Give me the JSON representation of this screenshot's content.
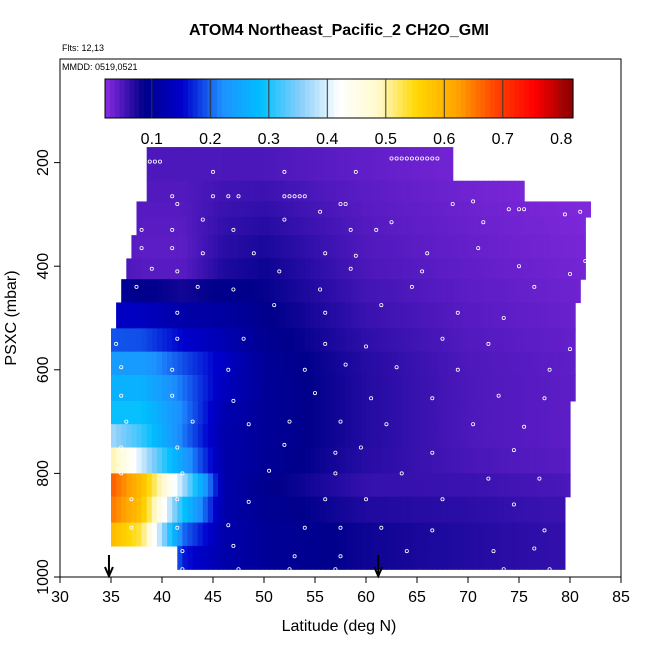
{
  "chart_data": {
    "type": "heatmap",
    "title": "ATOM4 Northeast_Pacific_2 CH2O_GMI",
    "annotations": [
      "Flts: 12,13",
      "MMDD: 0519,0521"
    ],
    "xlabel": "Latitude (deg N)",
    "ylabel": "PSXC (mbar)",
    "xlim": [
      30,
      85
    ],
    "ylim": [
      1000,
      0
    ],
    "x_ticks": [
      "30",
      "35",
      "40",
      "45",
      "50",
      "55",
      "60",
      "65",
      "70",
      "75",
      "80",
      "85"
    ],
    "y_ticks": [
      "200",
      "400",
      "600",
      "800",
      "1000"
    ],
    "colorbar": {
      "range": [
        0.02,
        0.82
      ],
      "ticks": [
        "0.1",
        "0.2",
        "0.3",
        "0.4",
        "0.5",
        "0.6",
        "0.7",
        "0.8"
      ],
      "colors": [
        "#8a2be2",
        "#00008b",
        "#0000cd",
        "#1e90ff",
        "#00bfff",
        "#87cefa",
        "#ffffff",
        "#fffacd",
        "#ffd700",
        "#ffa500",
        "#ff4500",
        "#ff0000",
        "#8b0000"
      ]
    },
    "flight_markers_latitude": [
      34.8,
      61.2
    ],
    "pressure_layers": [
      {
        "p_top": 170,
        "p_bot": 235,
        "lat_start": 38.5,
        "lat_end": 68.5
      },
      {
        "p_top": 235,
        "p_bot": 275,
        "lat_start": 38.5,
        "lat_end": 75.5
      },
      {
        "p_top": 275,
        "p_bot": 305,
        "lat_start": 37.5,
        "lat_end": 82.0
      },
      {
        "p_top": 305,
        "p_bot": 340,
        "lat_start": 37.5,
        "lat_end": 81.5
      },
      {
        "p_top": 340,
        "p_bot": 385,
        "lat_start": 37.0,
        "lat_end": 81.5
      },
      {
        "p_top": 385,
        "p_bot": 425,
        "lat_start": 36.5,
        "lat_end": 81.5
      },
      {
        "p_top": 425,
        "p_bot": 470,
        "lat_start": 36.0,
        "lat_end": 81.0
      },
      {
        "p_top": 470,
        "p_bot": 520,
        "lat_start": 35.5,
        "lat_end": 80.5
      },
      {
        "p_top": 520,
        "p_bot": 565,
        "lat_start": 35.0,
        "lat_end": 80.5
      },
      {
        "p_top": 565,
        "p_bot": 610,
        "lat_start": 35.0,
        "lat_end": 80.5
      },
      {
        "p_top": 610,
        "p_bot": 660,
        "lat_start": 35.0,
        "lat_end": 80.5
      },
      {
        "p_top": 660,
        "p_bot": 705,
        "lat_start": 35.0,
        "lat_end": 80.0
      },
      {
        "p_top": 705,
        "p_bot": 750,
        "lat_start": 35.0,
        "lat_end": 80.0
      },
      {
        "p_top": 750,
        "p_bot": 800,
        "lat_start": 35.0,
        "lat_end": 80.0
      },
      {
        "p_top": 800,
        "p_bot": 845,
        "lat_start": 35.0,
        "lat_end": 80.0
      },
      {
        "p_top": 845,
        "p_bot": 895,
        "lat_start": 35.0,
        "lat_end": 79.5
      },
      {
        "p_top": 895,
        "p_bot": 940,
        "lat_start": 35.0,
        "lat_end": 79.5
      },
      {
        "p_top": 940,
        "p_bot": 985,
        "lat_start": 41.5,
        "lat_end": 79.5
      }
    ],
    "value_stops": [
      {
        "lat": 35,
        "by_pressure": [
          [
            200,
            0.06
          ],
          [
            400,
            0.05
          ],
          [
            600,
            0.25
          ],
          [
            700,
            0.3
          ],
          [
            760,
            0.45
          ],
          [
            830,
            0.7
          ],
          [
            900,
            0.62
          ],
          [
            980,
            0.5
          ]
        ]
      },
      {
        "lat": 38,
        "by_pressure": [
          [
            200,
            0.05
          ],
          [
            400,
            0.04
          ],
          [
            600,
            0.25
          ],
          [
            700,
            0.3
          ],
          [
            760,
            0.33
          ],
          [
            830,
            0.62
          ],
          [
            900,
            0.55
          ],
          [
            980,
            0.45
          ]
        ]
      },
      {
        "lat": 42,
        "by_pressure": [
          [
            200,
            0.05
          ],
          [
            400,
            0.04
          ],
          [
            600,
            0.2
          ],
          [
            700,
            0.22
          ],
          [
            760,
            0.2
          ],
          [
            830,
            0.4
          ],
          [
            900,
            0.22
          ],
          [
            980,
            0.15
          ]
        ]
      },
      {
        "lat": 46,
        "by_pressure": [
          [
            200,
            0.05
          ],
          [
            400,
            0.07
          ],
          [
            600,
            0.15
          ],
          [
            700,
            0.12
          ],
          [
            760,
            0.12
          ],
          [
            830,
            0.12
          ],
          [
            900,
            0.12
          ],
          [
            980,
            0.12
          ]
        ]
      },
      {
        "lat": 50,
        "by_pressure": [
          [
            200,
            0.05
          ],
          [
            400,
            0.08
          ],
          [
            600,
            0.1
          ],
          [
            700,
            0.1
          ],
          [
            760,
            0.1
          ],
          [
            830,
            0.09
          ],
          [
            900,
            0.1
          ],
          [
            980,
            0.1
          ]
        ]
      },
      {
        "lat": 60,
        "by_pressure": [
          [
            200,
            0.04
          ],
          [
            400,
            0.05
          ],
          [
            600,
            0.07
          ],
          [
            700,
            0.07
          ],
          [
            760,
            0.07
          ],
          [
            830,
            0.06
          ],
          [
            900,
            0.08
          ],
          [
            980,
            0.08
          ]
        ]
      },
      {
        "lat": 70,
        "by_pressure": [
          [
            200,
            0.03
          ],
          [
            400,
            0.04
          ],
          [
            600,
            0.05
          ],
          [
            700,
            0.05
          ],
          [
            760,
            0.05
          ],
          [
            830,
            0.06
          ],
          [
            900,
            0.07
          ],
          [
            980,
            0.07
          ]
        ]
      },
      {
        "lat": 82,
        "by_pressure": [
          [
            200,
            0.02
          ],
          [
            400,
            0.03
          ],
          [
            600,
            0.04
          ],
          [
            700,
            0.04
          ],
          [
            760,
            0.04
          ],
          [
            830,
            0.05
          ],
          [
            900,
            0.06
          ],
          [
            980,
            0.06
          ]
        ]
      }
    ],
    "sample_points": [
      [
        38.8,
        198
      ],
      [
        39.3,
        198
      ],
      [
        39.8,
        198
      ],
      [
        62.5,
        192
      ],
      [
        63,
        192
      ],
      [
        63.5,
        192
      ],
      [
        64,
        192
      ],
      [
        64.5,
        192
      ],
      [
        65,
        192
      ],
      [
        65.5,
        192
      ],
      [
        66,
        192
      ],
      [
        66.5,
        192
      ],
      [
        67,
        192
      ],
      [
        69,
        212
      ],
      [
        45,
        218
      ],
      [
        52,
        218
      ],
      [
        59,
        218
      ],
      [
        38,
        270
      ],
      [
        41,
        265
      ],
      [
        41.5,
        280
      ],
      [
        45,
        265
      ],
      [
        46.5,
        265
      ],
      [
        47.5,
        265
      ],
      [
        52,
        265
      ],
      [
        52.5,
        265
      ],
      [
        53,
        265
      ],
      [
        53.5,
        265
      ],
      [
        54,
        265
      ],
      [
        57.5,
        280
      ],
      [
        58,
        280
      ],
      [
        68.5,
        280
      ],
      [
        70.5,
        275
      ],
      [
        74,
        290
      ],
      [
        75,
        290
      ],
      [
        75.5,
        290
      ],
      [
        81,
        295
      ],
      [
        38,
        330
      ],
      [
        41,
        330
      ],
      [
        44,
        310
      ],
      [
        47,
        330
      ],
      [
        52,
        310
      ],
      [
        55.5,
        295
      ],
      [
        58.5,
        330
      ],
      [
        61,
        330
      ],
      [
        62.5,
        315
      ],
      [
        71.5,
        315
      ],
      [
        79.5,
        300
      ],
      [
        38,
        365
      ],
      [
        41,
        365
      ],
      [
        44,
        375
      ],
      [
        49,
        375
      ],
      [
        56,
        375
      ],
      [
        59,
        380
      ],
      [
        66,
        375
      ],
      [
        71,
        365
      ],
      [
        81.5,
        390
      ],
      [
        39,
        405
      ],
      [
        41.5,
        410
      ],
      [
        51.5,
        410
      ],
      [
        58.5,
        405
      ],
      [
        65.5,
        410
      ],
      [
        75,
        400
      ],
      [
        80,
        415
      ],
      [
        37.5,
        440
      ],
      [
        43.5,
        440
      ],
      [
        47,
        445
      ],
      [
        55.5,
        445
      ],
      [
        64.5,
        440
      ],
      [
        76.5,
        440
      ],
      [
        41.5,
        490
      ],
      [
        51,
        475
      ],
      [
        56,
        490
      ],
      [
        61.5,
        475
      ],
      [
        69,
        490
      ],
      [
        73.5,
        500
      ],
      [
        35.5,
        550
      ],
      [
        41.5,
        540
      ],
      [
        48,
        540
      ],
      [
        56,
        550
      ],
      [
        60,
        555
      ],
      [
        67.5,
        540
      ],
      [
        72,
        550
      ],
      [
        80,
        560
      ],
      [
        36,
        595
      ],
      [
        41,
        600
      ],
      [
        46.5,
        600
      ],
      [
        54,
        600
      ],
      [
        58,
        590
      ],
      [
        63,
        595
      ],
      [
        69,
        600
      ],
      [
        78,
        600
      ],
      [
        36,
        650
      ],
      [
        41,
        650
      ],
      [
        47,
        660
      ],
      [
        55,
        645
      ],
      [
        60.5,
        655
      ],
      [
        66.5,
        655
      ],
      [
        73,
        650
      ],
      [
        77.5,
        655
      ],
      [
        36.5,
        700
      ],
      [
        43,
        700
      ],
      [
        48.5,
        705
      ],
      [
        52.5,
        700
      ],
      [
        57.5,
        700
      ],
      [
        62,
        705
      ],
      [
        70.5,
        705
      ],
      [
        75.5,
        710
      ],
      [
        36,
        750
      ],
      [
        41.5,
        750
      ],
      [
        52,
        745
      ],
      [
        57,
        760
      ],
      [
        59.5,
        750
      ],
      [
        66.5,
        760
      ],
      [
        74.5,
        755
      ],
      [
        36,
        800
      ],
      [
        42,
        800
      ],
      [
        50.5,
        795
      ],
      [
        57,
        800
      ],
      [
        63.5,
        800
      ],
      [
        72,
        810
      ],
      [
        77,
        810
      ],
      [
        37,
        850
      ],
      [
        41.5,
        850
      ],
      [
        48.5,
        855
      ],
      [
        56,
        850
      ],
      [
        60,
        850
      ],
      [
        67.5,
        850
      ],
      [
        74.5,
        860
      ],
      [
        37,
        905
      ],
      [
        41.5,
        905
      ],
      [
        46.5,
        900
      ],
      [
        54,
        905
      ],
      [
        57.5,
        905
      ],
      [
        61.5,
        905
      ],
      [
        66.5,
        910
      ],
      [
        77.5,
        910
      ],
      [
        38,
        955
      ],
      [
        42,
        950
      ],
      [
        47,
        940
      ],
      [
        53,
        960
      ],
      [
        57.5,
        960
      ],
      [
        64,
        950
      ],
      [
        72.5,
        950
      ],
      [
        76.5,
        945
      ],
      [
        42,
        985
      ],
      [
        47.5,
        985
      ],
      [
        52.5,
        985
      ],
      [
        57,
        985
      ],
      [
        73.5,
        985
      ],
      [
        78,
        985
      ]
    ]
  }
}
